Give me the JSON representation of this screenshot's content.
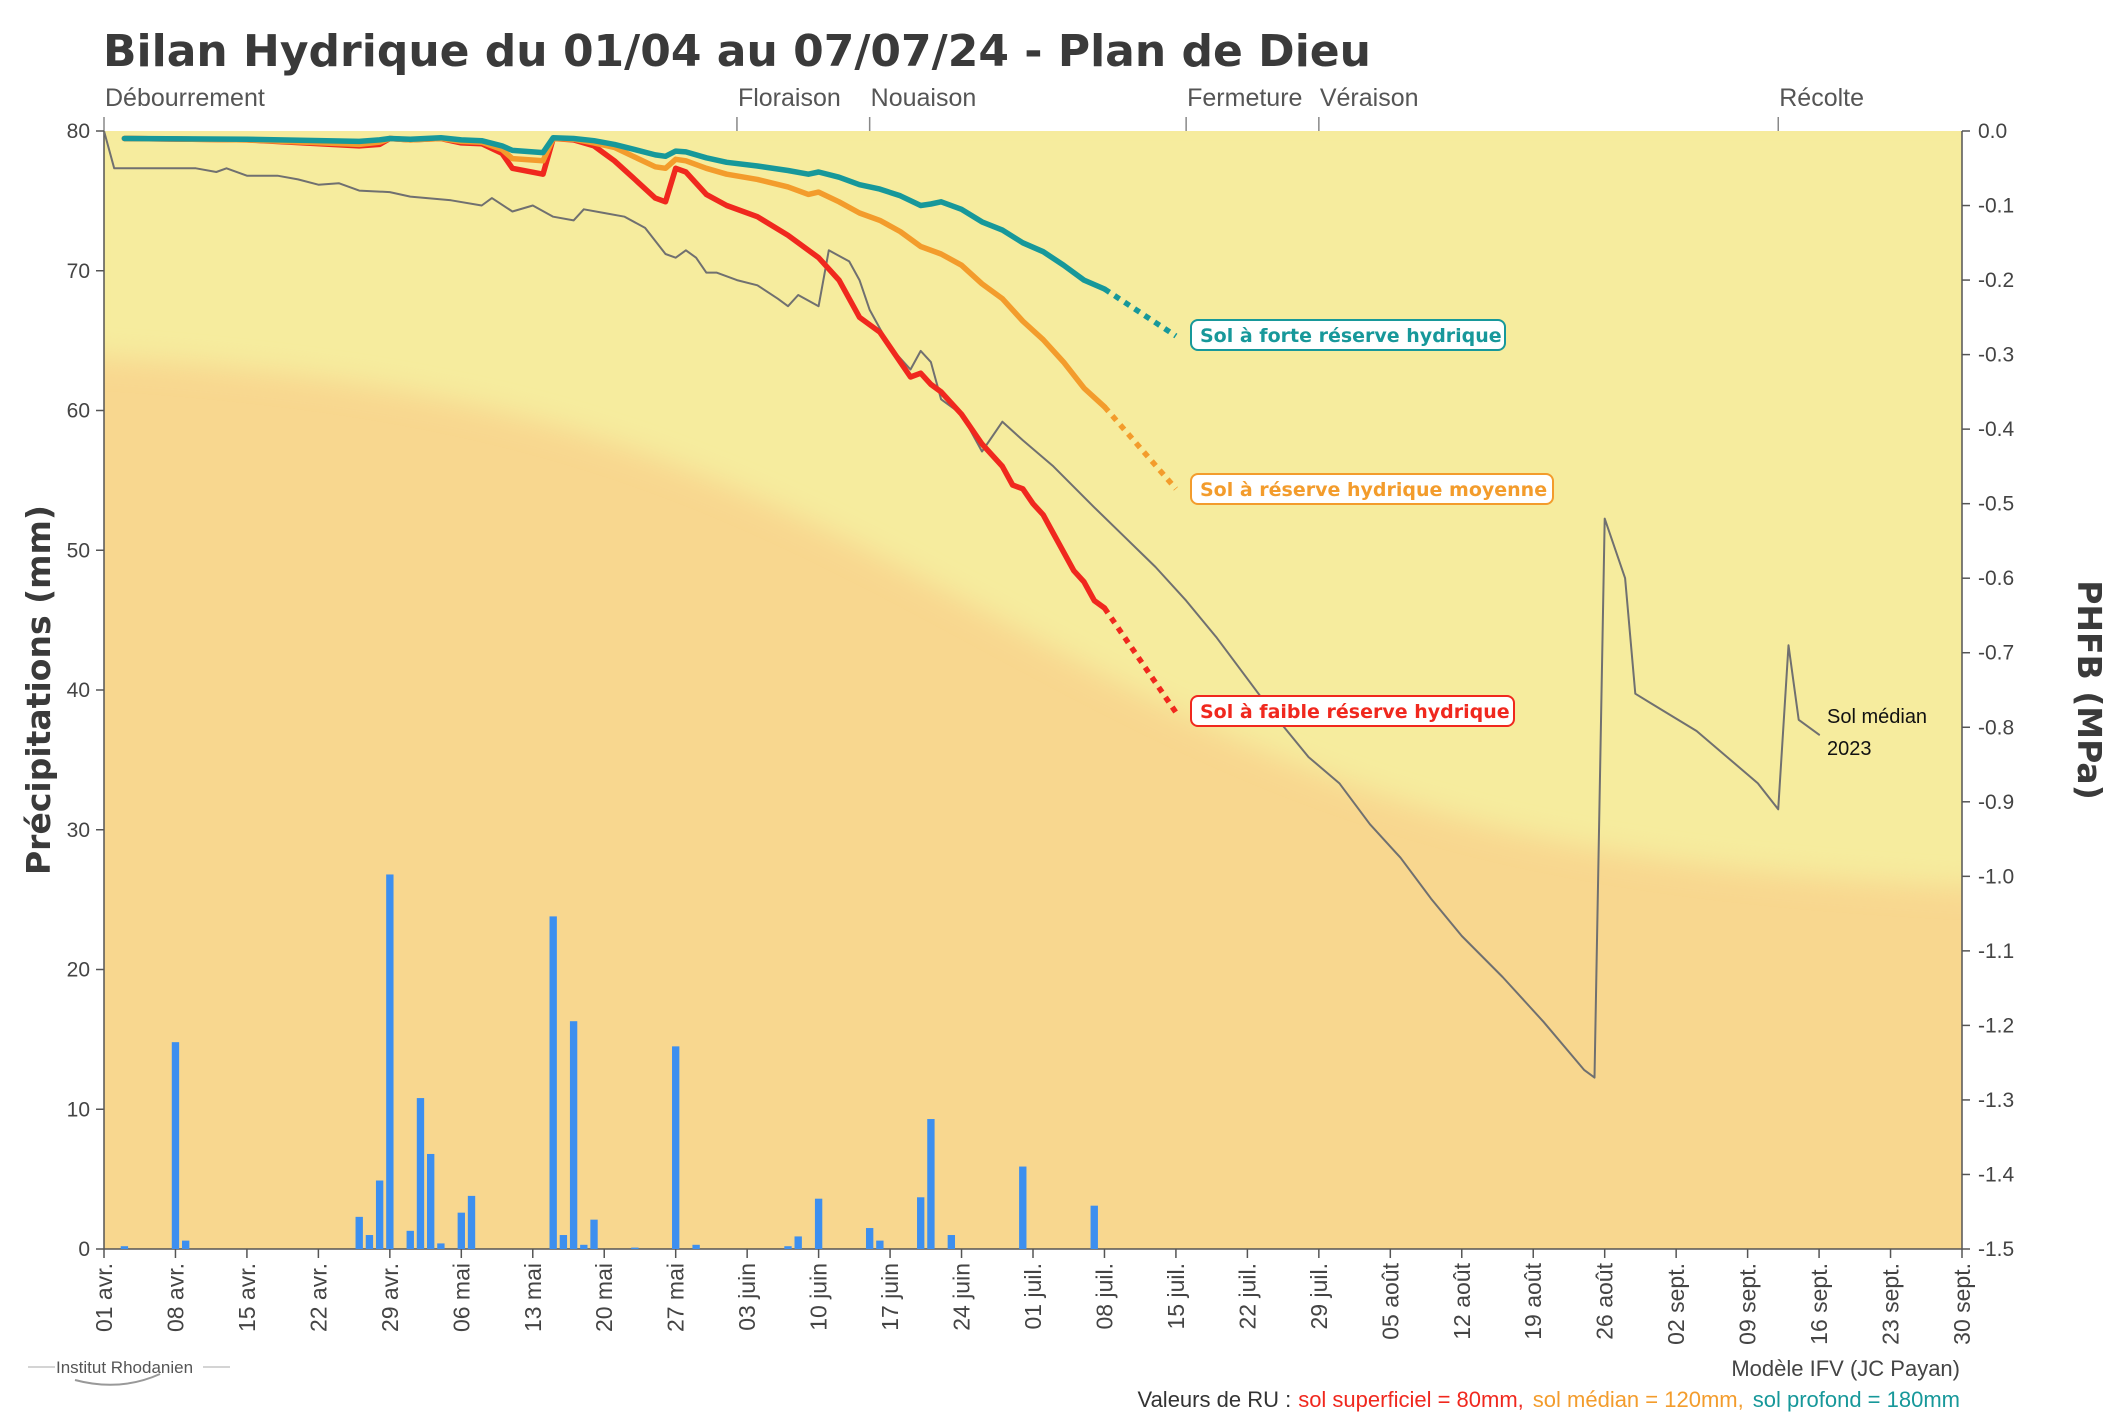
{
  "title": "Bilan Hydrique du 01/04 au 07/07/24 - Plan de Dieu",
  "logo_text": "Institut Rhodanien",
  "footer": {
    "model": "Modèle IFV (JC Payan)",
    "ru_prefix": "Valeurs de RU :",
    "ru_low": "sol superficiel = 80mm,",
    "ru_mid": "sol médian = 120mm,",
    "ru_high": "sol profond = 180mm"
  },
  "colors": {
    "low": "#f0281e",
    "mid": "#f39c2c",
    "high": "#17989a",
    "rain": "#3d8fef",
    "median": "#707070",
    "band_blue": "#dcecf9",
    "band_green": "#edf6d6",
    "band_yellow": "#f6ec9e",
    "band_orange": "#f8d78f"
  },
  "chart_data": {
    "type": "line",
    "x_axis": {
      "start": "2024-04-01",
      "end": "2024-09-30",
      "ticks": [
        "01 avr.",
        "08 avr.",
        "15 avr.",
        "22 avr.",
        "29 avr.",
        "06 mai",
        "13 mai",
        "20 mai",
        "27 mai",
        "03 juin",
        "10 juin",
        "17 juin",
        "24 juin",
        "01 juil.",
        "08 juil.",
        "15 juil.",
        "22 juil.",
        "29 juil.",
        "05 août",
        "12 août",
        "19 août",
        "26 août",
        "02 sept.",
        "09 sept.",
        "16 sept.",
        "23 sept.",
        "30 sept."
      ]
    },
    "y_left": {
      "label": "Précipitations (mm)",
      "range": [
        0,
        80
      ],
      "ticks": [
        "0",
        "10",
        "20",
        "30",
        "40",
        "50",
        "60",
        "70",
        "80"
      ]
    },
    "y_right": {
      "label": "PHFB (MPa)",
      "range": [
        -1.5,
        0.0
      ],
      "ticks": [
        "0.0",
        "-0.1",
        "-0.2",
        "-0.3",
        "-0.4",
        "-0.5",
        "-0.6",
        "-0.7",
        "-0.8",
        "-0.9",
        "-1.0",
        "-1.1",
        "-1.2",
        "-1.3",
        "-1.4",
        "-1.5"
      ]
    },
    "phenology": [
      {
        "label": "Débourrement",
        "date": "2024-04-01"
      },
      {
        "label": "Floraison",
        "date": "2024-06-02"
      },
      {
        "label": "Nouaison",
        "date": "2024-06-15"
      },
      {
        "label": "Fermeture",
        "date": "2024-07-16"
      },
      {
        "label": "Véraison",
        "date": "2024-07-29"
      },
      {
        "label": "Récolte",
        "date": "2024-09-12"
      }
    ],
    "rain": [
      [
        "2024-04-03",
        0.2
      ],
      [
        "2024-04-08",
        14.8
      ],
      [
        "2024-04-09",
        0.6
      ],
      [
        "2024-04-26",
        2.3
      ],
      [
        "2024-04-27",
        1.0
      ],
      [
        "2024-04-28",
        4.9
      ],
      [
        "2024-04-29",
        26.8
      ],
      [
        "2024-05-01",
        1.3
      ],
      [
        "2024-05-02",
        10.8
      ],
      [
        "2024-05-03",
        6.8
      ],
      [
        "2024-05-04",
        0.4
      ],
      [
        "2024-05-06",
        2.6
      ],
      [
        "2024-05-07",
        3.8
      ],
      [
        "2024-05-15",
        23.8
      ],
      [
        "2024-05-16",
        1.0
      ],
      [
        "2024-05-17",
        16.3
      ],
      [
        "2024-05-18",
        0.3
      ],
      [
        "2024-05-19",
        2.1
      ],
      [
        "2024-05-23",
        0.1
      ],
      [
        "2024-05-27",
        14.5
      ],
      [
        "2024-05-29",
        0.3
      ],
      [
        "2024-06-07",
        0.2
      ],
      [
        "2024-06-08",
        0.9
      ],
      [
        "2024-06-10",
        3.6
      ],
      [
        "2024-06-15",
        1.5
      ],
      [
        "2024-06-16",
        0.6
      ],
      [
        "2024-06-20",
        3.7
      ],
      [
        "2024-06-21",
        9.3
      ],
      [
        "2024-06-23",
        1.0
      ],
      [
        "2024-06-30",
        5.9
      ],
      [
        "2024-07-07",
        3.1
      ]
    ],
    "series": [
      {
        "name": "Sol à faible réserve hydrique",
        "key": "low",
        "values": [
          [
            "2024-04-03",
            -0.01
          ],
          [
            "2024-04-15",
            -0.012
          ],
          [
            "2024-04-26",
            -0.02
          ],
          [
            "2024-04-28",
            -0.018
          ],
          [
            "2024-04-29",
            -0.01
          ],
          [
            "2024-05-01",
            -0.012
          ],
          [
            "2024-05-04",
            -0.01
          ],
          [
            "2024-05-06",
            -0.016
          ],
          [
            "2024-05-08",
            -0.017
          ],
          [
            "2024-05-10",
            -0.03
          ],
          [
            "2024-05-11",
            -0.05
          ],
          [
            "2024-05-14",
            -0.058
          ],
          [
            "2024-05-15",
            -0.01
          ],
          [
            "2024-05-17",
            -0.012
          ],
          [
            "2024-05-19",
            -0.02
          ],
          [
            "2024-05-20",
            -0.03
          ],
          [
            "2024-05-21",
            -0.04
          ],
          [
            "2024-05-23",
            -0.065
          ],
          [
            "2024-05-25",
            -0.09
          ],
          [
            "2024-05-26",
            -0.095
          ],
          [
            "2024-05-27",
            -0.05
          ],
          [
            "2024-05-28",
            -0.055
          ],
          [
            "2024-05-30",
            -0.085
          ],
          [
            "2024-06-01",
            -0.1
          ],
          [
            "2024-06-04",
            -0.115
          ],
          [
            "2024-06-07",
            -0.14
          ],
          [
            "2024-06-10",
            -0.17
          ],
          [
            "2024-06-12",
            -0.2
          ],
          [
            "2024-06-14",
            -0.25
          ],
          [
            "2024-06-16",
            -0.27
          ],
          [
            "2024-06-18",
            -0.31
          ],
          [
            "2024-06-19",
            -0.33
          ],
          [
            "2024-06-20",
            -0.325
          ],
          [
            "2024-06-21",
            -0.34
          ],
          [
            "2024-06-22",
            -0.35
          ],
          [
            "2024-06-24",
            -0.38
          ],
          [
            "2024-06-26",
            -0.42
          ],
          [
            "2024-06-28",
            -0.45
          ],
          [
            "2024-06-29",
            -0.475
          ],
          [
            "2024-06-30",
            -0.48
          ],
          [
            "2024-07-01",
            -0.5
          ],
          [
            "2024-07-02",
            -0.515
          ],
          [
            "2024-07-03",
            -0.54
          ],
          [
            "2024-07-05",
            -0.59
          ],
          [
            "2024-07-06",
            -0.605
          ],
          [
            "2024-07-07",
            -0.63
          ],
          [
            "2024-07-08",
            -0.64
          ]
        ],
        "forecast": [
          [
            "2024-07-08",
            -0.64
          ],
          [
            "2024-07-15",
            -0.78
          ]
        ]
      },
      {
        "name": "Sol à réserve hydrique moyenne",
        "key": "mid",
        "values": [
          [
            "2024-04-03",
            -0.01
          ],
          [
            "2024-04-15",
            -0.012
          ],
          [
            "2024-04-26",
            -0.018
          ],
          [
            "2024-04-28",
            -0.015
          ],
          [
            "2024-04-29",
            -0.01
          ],
          [
            "2024-05-01",
            -0.012
          ],
          [
            "2024-05-04",
            -0.01
          ],
          [
            "2024-05-06",
            -0.014
          ],
          [
            "2024-05-08",
            -0.015
          ],
          [
            "2024-05-10",
            -0.025
          ],
          [
            "2024-05-11",
            -0.037
          ],
          [
            "2024-05-14",
            -0.04
          ],
          [
            "2024-05-15",
            -0.01
          ],
          [
            "2024-05-17",
            -0.011
          ],
          [
            "2024-05-19",
            -0.016
          ],
          [
            "2024-05-21",
            -0.022
          ],
          [
            "2024-05-23",
            -0.035
          ],
          [
            "2024-05-25",
            -0.048
          ],
          [
            "2024-05-26",
            -0.05
          ],
          [
            "2024-05-27",
            -0.038
          ],
          [
            "2024-05-28",
            -0.04
          ],
          [
            "2024-05-30",
            -0.05
          ],
          [
            "2024-06-01",
            -0.058
          ],
          [
            "2024-06-04",
            -0.065
          ],
          [
            "2024-06-07",
            -0.075
          ],
          [
            "2024-06-09",
            -0.085
          ],
          [
            "2024-06-10",
            -0.082
          ],
          [
            "2024-06-12",
            -0.095
          ],
          [
            "2024-06-14",
            -0.11
          ],
          [
            "2024-06-16",
            -0.12
          ],
          [
            "2024-06-18",
            -0.135
          ],
          [
            "2024-06-20",
            -0.155
          ],
          [
            "2024-06-22",
            -0.165
          ],
          [
            "2024-06-24",
            -0.18
          ],
          [
            "2024-06-26",
            -0.205
          ],
          [
            "2024-06-28",
            -0.225
          ],
          [
            "2024-06-30",
            -0.255
          ],
          [
            "2024-07-02",
            -0.28
          ],
          [
            "2024-07-04",
            -0.31
          ],
          [
            "2024-07-06",
            -0.345
          ],
          [
            "2024-07-08",
            -0.37
          ]
        ],
        "forecast": [
          [
            "2024-07-08",
            -0.37
          ],
          [
            "2024-07-15",
            -0.48
          ]
        ]
      },
      {
        "name": "Sol à forte réserve hydrique",
        "key": "high",
        "values": [
          [
            "2024-04-03",
            -0.01
          ],
          [
            "2024-04-15",
            -0.011
          ],
          [
            "2024-04-26",
            -0.014
          ],
          [
            "2024-04-28",
            -0.012
          ],
          [
            "2024-04-29",
            -0.01
          ],
          [
            "2024-05-01",
            -0.011
          ],
          [
            "2024-05-04",
            -0.009
          ],
          [
            "2024-05-06",
            -0.012
          ],
          [
            "2024-05-08",
            -0.013
          ],
          [
            "2024-05-10",
            -0.02
          ],
          [
            "2024-05-11",
            -0.026
          ],
          [
            "2024-05-14",
            -0.029
          ],
          [
            "2024-05-15",
            -0.009
          ],
          [
            "2024-05-17",
            -0.01
          ],
          [
            "2024-05-19",
            -0.013
          ],
          [
            "2024-05-21",
            -0.018
          ],
          [
            "2024-05-23",
            -0.025
          ],
          [
            "2024-05-25",
            -0.032
          ],
          [
            "2024-05-26",
            -0.034
          ],
          [
            "2024-05-27",
            -0.027
          ],
          [
            "2024-05-28",
            -0.028
          ],
          [
            "2024-05-30",
            -0.036
          ],
          [
            "2024-06-01",
            -0.042
          ],
          [
            "2024-06-04",
            -0.047
          ],
          [
            "2024-06-07",
            -0.053
          ],
          [
            "2024-06-09",
            -0.058
          ],
          [
            "2024-06-10",
            -0.055
          ],
          [
            "2024-06-12",
            -0.062
          ],
          [
            "2024-06-14",
            -0.072
          ],
          [
            "2024-06-16",
            -0.078
          ],
          [
            "2024-06-18",
            -0.087
          ],
          [
            "2024-06-20",
            -0.1
          ],
          [
            "2024-06-21",
            -0.098
          ],
          [
            "2024-06-22",
            -0.095
          ],
          [
            "2024-06-24",
            -0.105
          ],
          [
            "2024-06-26",
            -0.122
          ],
          [
            "2024-06-28",
            -0.133
          ],
          [
            "2024-06-30",
            -0.15
          ],
          [
            "2024-07-02",
            -0.162
          ],
          [
            "2024-07-04",
            -0.18
          ],
          [
            "2024-07-06",
            -0.2
          ],
          [
            "2024-07-08",
            -0.212
          ]
        ],
        "forecast": [
          [
            "2024-07-08",
            -0.212
          ],
          [
            "2024-07-15",
            -0.275
          ]
        ]
      },
      {
        "name": "Sol médian 2023",
        "key": "median",
        "values": [
          [
            "2024-04-01",
            0.0
          ],
          [
            "2024-04-02",
            -0.05
          ],
          [
            "2024-04-10",
            -0.05
          ],
          [
            "2024-04-12",
            -0.055
          ],
          [
            "2024-04-13",
            -0.05
          ],
          [
            "2024-04-15",
            -0.06
          ],
          [
            "2024-04-18",
            -0.06
          ],
          [
            "2024-04-20",
            -0.065
          ],
          [
            "2024-04-22",
            -0.072
          ],
          [
            "2024-04-24",
            -0.07
          ],
          [
            "2024-04-26",
            -0.08
          ],
          [
            "2024-04-29",
            -0.082
          ],
          [
            "2024-05-01",
            -0.088
          ],
          [
            "2024-05-05",
            -0.093
          ],
          [
            "2024-05-08",
            -0.1
          ],
          [
            "2024-05-09",
            -0.09
          ],
          [
            "2024-05-11",
            -0.108
          ],
          [
            "2024-05-13",
            -0.1
          ],
          [
            "2024-05-15",
            -0.115
          ],
          [
            "2024-05-17",
            -0.12
          ],
          [
            "2024-05-18",
            -0.105
          ],
          [
            "2024-05-20",
            -0.11
          ],
          [
            "2024-05-22",
            -0.115
          ],
          [
            "2024-05-24",
            -0.13
          ],
          [
            "2024-05-26",
            -0.165
          ],
          [
            "2024-05-27",
            -0.17
          ],
          [
            "2024-05-28",
            -0.16
          ],
          [
            "2024-05-29",
            -0.17
          ],
          [
            "2024-05-30",
            -0.19
          ],
          [
            "2024-05-31",
            -0.19
          ],
          [
            "2024-06-02",
            -0.2
          ],
          [
            "2024-06-04",
            -0.207
          ],
          [
            "2024-06-06",
            -0.225
          ],
          [
            "2024-06-07",
            -0.235
          ],
          [
            "2024-06-08",
            -0.22
          ],
          [
            "2024-06-10",
            -0.235
          ],
          [
            "2024-06-11",
            -0.16
          ],
          [
            "2024-06-13",
            -0.175
          ],
          [
            "2024-06-14",
            -0.2
          ],
          [
            "2024-06-15",
            -0.24
          ],
          [
            "2024-06-17",
            -0.29
          ],
          [
            "2024-06-19",
            -0.32
          ],
          [
            "2024-06-20",
            -0.295
          ],
          [
            "2024-06-21",
            -0.31
          ],
          [
            "2024-06-22",
            -0.36
          ],
          [
            "2024-06-24",
            -0.38
          ],
          [
            "2024-06-26",
            -0.43
          ],
          [
            "2024-06-28",
            -0.39
          ],
          [
            "2024-06-30",
            -0.415
          ],
          [
            "2024-07-03",
            -0.45
          ],
          [
            "2024-07-07",
            -0.505
          ],
          [
            "2024-07-10",
            -0.545
          ],
          [
            "2024-07-13",
            -0.585
          ],
          [
            "2024-07-16",
            -0.63
          ],
          [
            "2024-07-19",
            -0.68
          ],
          [
            "2024-07-22",
            -0.735
          ],
          [
            "2024-07-25",
            -0.79
          ],
          [
            "2024-07-28",
            -0.84
          ],
          [
            "2024-07-31",
            -0.875
          ],
          [
            "2024-08-03",
            -0.93
          ],
          [
            "2024-08-06",
            -0.975
          ],
          [
            "2024-08-09",
            -1.03
          ],
          [
            "2024-08-12",
            -1.08
          ],
          [
            "2024-08-16",
            -1.135
          ],
          [
            "2024-08-20",
            -1.195
          ],
          [
            "2024-08-24",
            -1.26
          ],
          [
            "2024-08-25",
            -1.27
          ],
          [
            "2024-08-26",
            -0.52
          ],
          [
            "2024-08-28",
            -0.6
          ],
          [
            "2024-08-29",
            -0.755
          ],
          [
            "2024-09-01",
            -0.78
          ],
          [
            "2024-09-04",
            -0.805
          ],
          [
            "2024-09-07",
            -0.84
          ],
          [
            "2024-09-10",
            -0.875
          ],
          [
            "2024-09-12",
            -0.91
          ],
          [
            "2024-09-13",
            -0.69
          ],
          [
            "2024-09-14",
            -0.79
          ],
          [
            "2024-09-16",
            -0.81
          ]
        ]
      }
    ]
  },
  "labels": {
    "high_callout": "Sol à forte réserve hydrique",
    "mid_callout": "Sol à réserve hydrique moyenne",
    "low_callout": "Sol à faible réserve hydrique",
    "median_line1": "Sol médian",
    "median_line2": "2023"
  }
}
